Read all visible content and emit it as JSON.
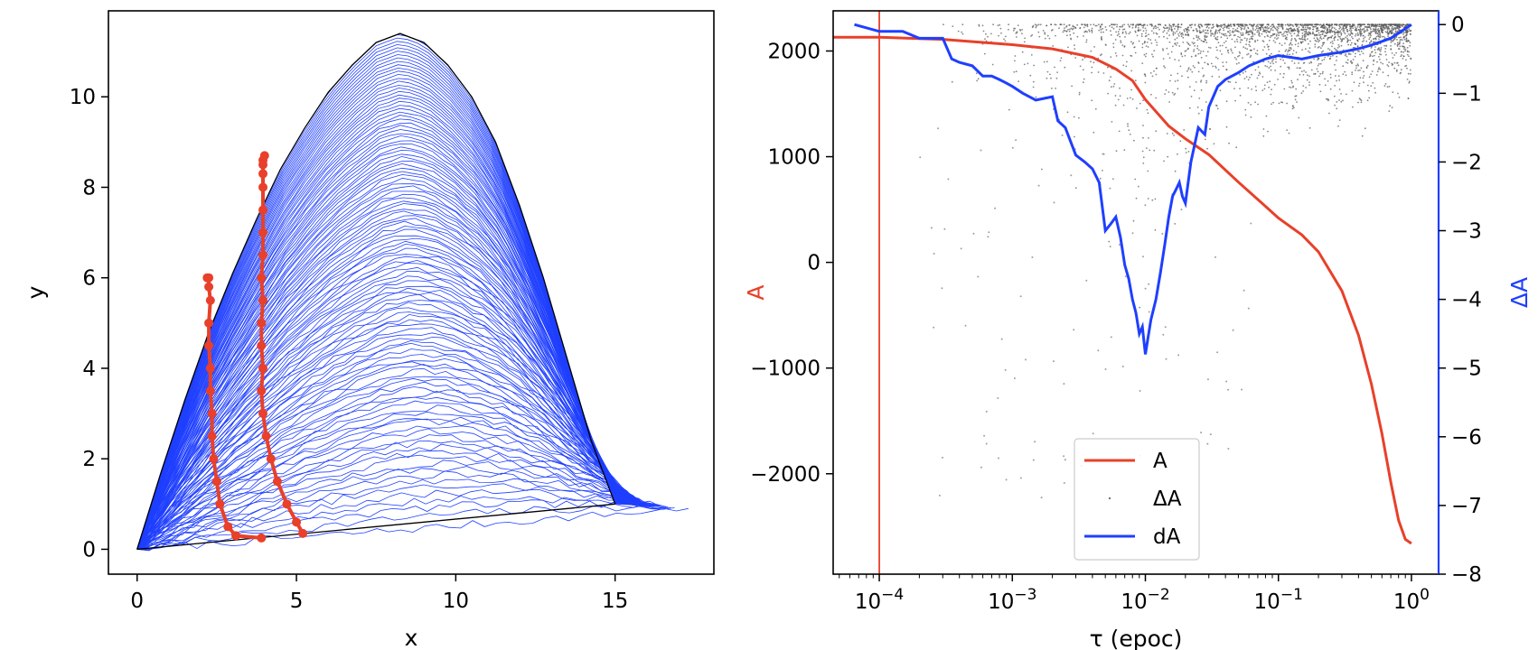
{
  "chart_data": [
    {
      "type": "line",
      "xlabel": "x",
      "ylabel": "y",
      "xlim": [
        -0.9,
        18.1
      ],
      "ylim": [
        -0.55,
        11.9
      ],
      "x_ticks": [
        "0",
        "5",
        "10",
        "15"
      ],
      "y_ticks": [
        "0",
        "2",
        "4",
        "6",
        "8",
        "10"
      ],
      "colors": {
        "curves": "#1f3fff",
        "outline": "#000000",
        "markers": "#e8402a"
      },
      "envelope": {
        "x": [
          0,
          0.75,
          1.5,
          2.25,
          3,
          3.75,
          4.5,
          5.25,
          6,
          6.75,
          7.5,
          8.25,
          9,
          9.75,
          10.5,
          11.25,
          12,
          12.75,
          13.5,
          14.25,
          15
        ],
        "y": [
          0,
          1.7,
          3.3,
          4.8,
          6.1,
          7.3,
          8.4,
          9.3,
          10.1,
          10.7,
          11.2,
          11.4,
          11.2,
          10.7,
          10.0,
          9.0,
          7.6,
          6.0,
          4.2,
          2.4,
          1.0
        ]
      },
      "start_point": [
        0,
        0
      ],
      "end_point": [
        15,
        1.0
      ],
      "extended_end_point": [
        17.3,
        0.9
      ],
      "curve_count": 120,
      "marker_series": [
        {
          "x": [
            3.9,
            3.1,
            2.85,
            2.6,
            2.5,
            2.4,
            2.35,
            2.35,
            2.3,
            2.3,
            2.25,
            2.25,
            2.3,
            2.25,
            2.25,
            2.2
          ],
          "y": [
            0.25,
            0.3,
            0.5,
            1.0,
            1.5,
            2.0,
            2.5,
            3.0,
            3.5,
            4.0,
            4.5,
            5.0,
            5.5,
            5.8,
            6.0,
            6.0
          ]
        },
        {
          "x": [
            5.2,
            5.0,
            4.7,
            4.4,
            4.2,
            4.05,
            3.95,
            3.9,
            3.95,
            3.9,
            3.9,
            3.95,
            3.9,
            3.95,
            3.95,
            3.95,
            3.95,
            3.95,
            3.95,
            3.95,
            4.0
          ],
          "y": [
            0.35,
            0.6,
            1.0,
            1.5,
            2.0,
            2.5,
            3.0,
            3.5,
            4.0,
            4.5,
            5.0,
            5.5,
            6.0,
            6.5,
            7.0,
            7.5,
            8.0,
            8.3,
            8.5,
            8.6,
            8.7
          ]
        }
      ]
    },
    {
      "type": "line",
      "xlabel": "τ (epoc)",
      "ylabel": "A",
      "ylabel_right": "ΔA",
      "xscale": "log",
      "xlim": [
        4.5e-05,
        1.6
      ],
      "ylim": [
        -2950,
        2380
      ],
      "ylim_right": [
        -8,
        0.2
      ],
      "x_ticks": [
        {
          "value": 0.0001,
          "base": "10",
          "exp": "−4"
        },
        {
          "value": 0.001,
          "base": "10",
          "exp": "−3"
        },
        {
          "value": 0.01,
          "base": "10",
          "exp": "−2"
        },
        {
          "value": 0.1,
          "base": "10",
          "exp": "−1"
        },
        {
          "value": 1,
          "base": "10",
          "exp": "0"
        }
      ],
      "y_ticks": [
        "2000",
        "1000",
        "0",
        "−1000",
        "−2000"
      ],
      "y_ticks_values": [
        2000,
        1000,
        0,
        -1000,
        -2000
      ],
      "y_ticks_right": [
        "0",
        "−1",
        "−2",
        "−3",
        "−4",
        "−5",
        "−6",
        "−7",
        "−8"
      ],
      "y_ticks_right_values": [
        0,
        -1,
        -2,
        -3,
        -4,
        -5,
        -6,
        -7,
        -8
      ],
      "vline_x": 0.0001,
      "legend": {
        "position": "bottom-center",
        "entries": [
          "A",
          "ΔA",
          "dA"
        ]
      },
      "colors": {
        "A": "#e8402a",
        "dA": "#1f3fff",
        "scatter": "#555555"
      },
      "series": [
        {
          "name": "A",
          "axis": "left",
          "x": [
            4.5e-05,
            0.0001,
            0.0003,
            0.001,
            0.002,
            0.004,
            0.006,
            0.008,
            0.01,
            0.015,
            0.02,
            0.03,
            0.05,
            0.08,
            0.1,
            0.15,
            0.2,
            0.3,
            0.4,
            0.5,
            0.6,
            0.7,
            0.8,
            0.9,
            1.0
          ],
          "y": [
            2130,
            2130,
            2110,
            2060,
            2020,
            1940,
            1830,
            1720,
            1540,
            1290,
            1170,
            1020,
            760,
            530,
            420,
            260,
            100,
            -270,
            -690,
            -1150,
            -1620,
            -2080,
            -2440,
            -2620,
            -2660
          ]
        },
        {
          "name": "dA",
          "axis": "right",
          "x": [
            6.5e-05,
            0.0001,
            0.00015,
            0.0002,
            0.0003,
            0.00035,
            0.0004,
            0.0005,
            0.0006,
            0.0007,
            0.0008,
            0.0009,
            0.001,
            0.0012,
            0.0015,
            0.002,
            0.0022,
            0.0025,
            0.003,
            0.0035,
            0.004,
            0.0045,
            0.005,
            0.0055,
            0.006,
            0.0065,
            0.007,
            0.0075,
            0.008,
            0.0085,
            0.009,
            0.0095,
            0.01,
            0.011,
            0.012,
            0.013,
            0.014,
            0.015,
            0.016,
            0.017,
            0.018,
            0.019,
            0.02,
            0.022,
            0.025,
            0.028,
            0.03,
            0.035,
            0.04,
            0.05,
            0.06,
            0.08,
            0.1,
            0.15,
            0.2,
            0.3,
            0.4,
            0.5,
            0.7,
            1.0
          ],
          "y": [
            0.0,
            -0.1,
            -0.1,
            -0.2,
            -0.2,
            -0.5,
            -0.55,
            -0.6,
            -0.75,
            -0.75,
            -0.8,
            -0.85,
            -0.9,
            -1.0,
            -1.1,
            -1.05,
            -1.4,
            -1.5,
            -1.9,
            -2.0,
            -2.1,
            -2.3,
            -3.0,
            -2.9,
            -2.8,
            -3.1,
            -3.5,
            -3.7,
            -4.0,
            -4.2,
            -4.5,
            -4.4,
            -4.8,
            -4.3,
            -4.0,
            -3.6,
            -3.2,
            -2.8,
            -2.5,
            -2.4,
            -2.3,
            -2.5,
            -2.6,
            -2.0,
            -1.5,
            -1.6,
            -1.2,
            -0.9,
            -0.8,
            -0.7,
            -0.6,
            -0.5,
            -0.45,
            -0.5,
            -0.45,
            -0.4,
            -0.35,
            -0.3,
            -0.2,
            0.0
          ]
        }
      ]
    }
  ]
}
